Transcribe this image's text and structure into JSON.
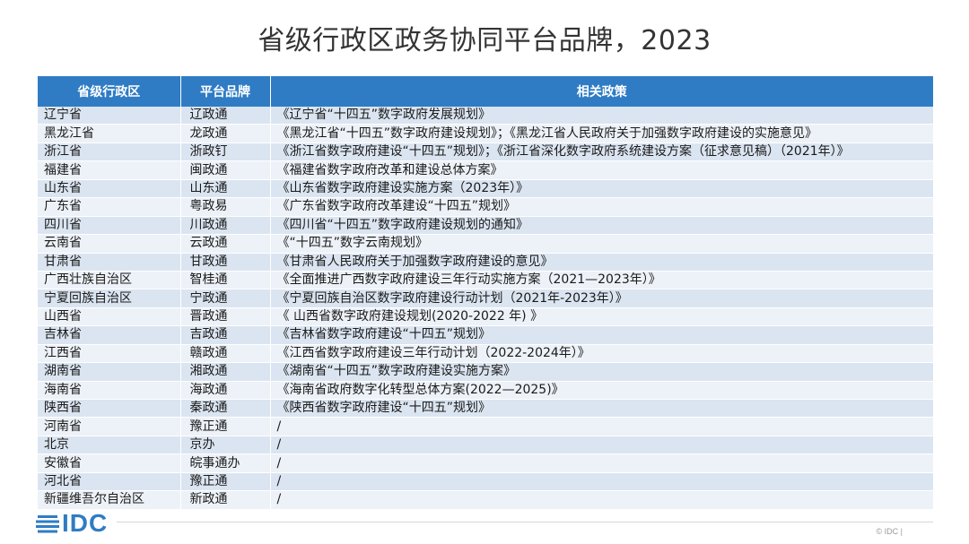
{
  "title": "省级行政区政务协同平台品牌，2023",
  "table": {
    "headers": [
      "省级行政区",
      "平台品牌",
      "相关政策"
    ],
    "rows": [
      {
        "region": "辽宁省",
        "brand": "辽政通",
        "policy": "《辽宁省“十四五”数字政府发展规划》"
      },
      {
        "region": "黑龙江省",
        "brand": "龙政通",
        "policy": "《黑龙江省“十四五”数字政府建设规划》；《黑龙江省人民政府关于加强数字政府建设的实施意见》"
      },
      {
        "region": "浙江省",
        "brand": "浙政钉",
        "policy": "《浙江省数字政府建设“十四五”规划》；《浙江省深化数字政府系统建设方案（征求意见稿）（2021年）》"
      },
      {
        "region": "福建省",
        "brand": "闽政通",
        "policy": "《福建省数字政府改革和建设总体方案》"
      },
      {
        "region": "山东省",
        "brand": "山东通",
        "policy": "《山东省数字政府建设实施方案（2023年）》"
      },
      {
        "region": "广东省",
        "brand": "粤政易",
        "policy": "《广东省数字政府改革建设“十四五”规划》"
      },
      {
        "region": "四川省",
        "brand": "川政通",
        "policy": "《四川省“十四五”数字政府建设规划的通知》"
      },
      {
        "region": "云南省",
        "brand": "云政通",
        "policy": "《“十四五”数字云南规划》"
      },
      {
        "region": "甘肃省",
        "brand": "甘政通",
        "policy": "《甘肃省人民政府关于加强数字政府建设的意见》"
      },
      {
        "region": "广西壮族自治区",
        "brand": "智桂通",
        "policy": "《全面推进广西数字政府建设三年行动实施方案（2021—2023年）》"
      },
      {
        "region": "宁夏回族自治区",
        "brand": "宁政通",
        "policy": "《宁夏回族自治区数字政府建设行动计划（2021年-2023年）》"
      },
      {
        "region": "山西省",
        "brand": "晋政通",
        "policy": "《 山西省数字政府建设规划(2020-2022 年) 》"
      },
      {
        "region": "吉林省",
        "brand": "吉政通",
        "policy": "《吉林省数字政府建设“十四五”规划》"
      },
      {
        "region": "江西省",
        "brand": "赣政通",
        "policy": "《江西省数字政府建设三年行动计划（2022-2024年）》"
      },
      {
        "region": "湖南省",
        "brand": "湘政通",
        "policy": "《湖南省“十四五”数字政府建设实施方案》"
      },
      {
        "region": "海南省",
        "brand": "海政通",
        "policy": "《海南省政府数字化转型总体方案(2022—2025)》"
      },
      {
        "region": "陕西省",
        "brand": "秦政通",
        "policy": "《陕西省数字政府建设“十四五”规划》"
      },
      {
        "region": "河南省",
        "brand": "豫正通",
        "policy": "/"
      },
      {
        "region": "北京",
        "brand": "京办",
        "policy": "/"
      },
      {
        "region": "安徽省",
        "brand": "皖事通办",
        "policy": "/"
      },
      {
        "region": "河北省",
        "brand": "豫正通",
        "policy": "/"
      },
      {
        "region": "新疆维吾尔自治区",
        "brand": "新政通",
        "policy": "/"
      }
    ]
  },
  "footer": {
    "logo_text": "IDC",
    "logo_icon": "idc-globe-icon",
    "copyright": "© IDC |"
  },
  "colors": {
    "header_bg": "#2f7cc4",
    "row_odd": "#dbe5f1",
    "row_even": "#edf2f8"
  }
}
